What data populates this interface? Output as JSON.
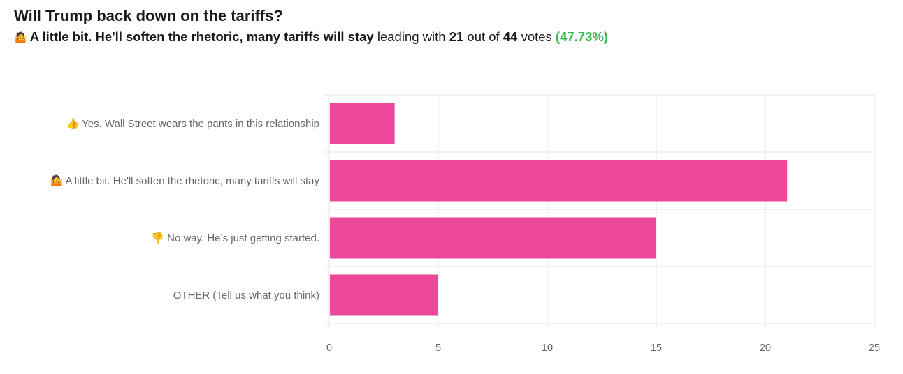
{
  "poll": {
    "question": "Will Trump back down on the tariffs?",
    "leader_emoji": "🤷",
    "leader_label": "A little bit. He'll soften the rhetoric, many tariffs will stay",
    "leading_with_text": "leading with",
    "leader_votes": "21",
    "out_of_text": "out of",
    "total_votes": "44",
    "votes_text": "votes",
    "leader_percent": "(47.73%)"
  },
  "chart_data": {
    "type": "bar",
    "orientation": "horizontal",
    "categories": [
      "👍 Yes. Wall Street wears the pants in this relationship",
      "🤷 A little bit. He'll soften the rhetoric, many tariffs will stay",
      "👎 No way. He’s just getting started.",
      "OTHER (Tell us what you think)"
    ],
    "values": [
      3,
      21,
      15,
      5
    ],
    "xlim": [
      0,
      25
    ],
    "xticks": [
      0,
      5,
      10,
      15,
      20,
      25
    ],
    "grid": true,
    "bar_color": "#ec4899",
    "title": "",
    "xlabel": "",
    "ylabel": ""
  }
}
